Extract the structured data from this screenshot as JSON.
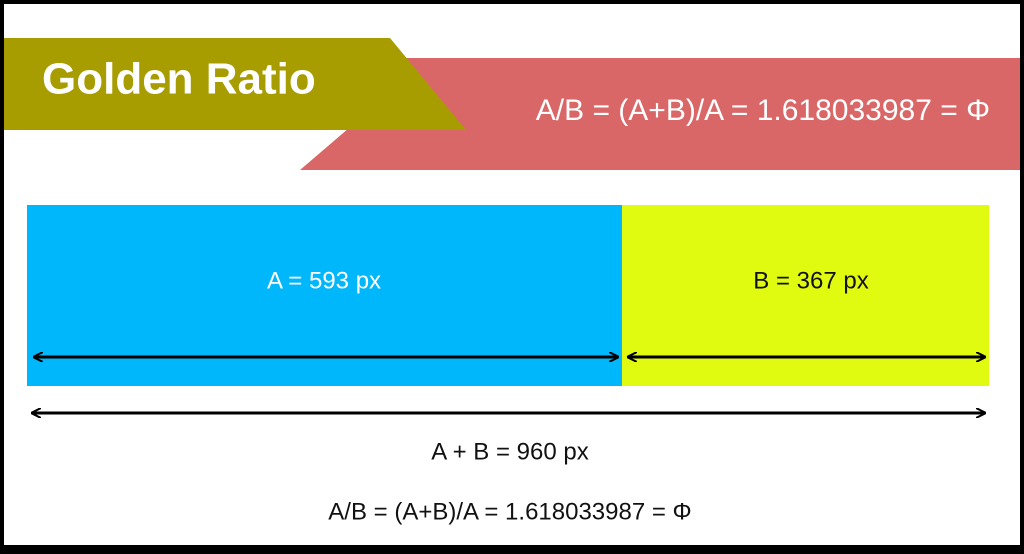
{
  "header": {
    "title": "Golden Ratio",
    "formula": "A/B = (A+B)/A = 1.618033987 = Φ"
  },
  "segments": [
    {
      "label": "A = 593 px"
    },
    {
      "label": "B = 367 px"
    }
  ],
  "total": {
    "label": "A + B = 960 px"
  },
  "footer": {
    "formula": "A/B = (A+B)/A = 1.618033987 = Φ"
  }
}
